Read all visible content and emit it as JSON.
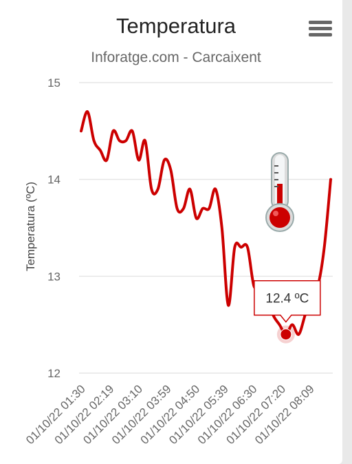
{
  "header": {
    "title": "Temperatura",
    "subtitle": "Inforatge.com - Carcaixent",
    "menu_icon": "hamburger-menu-icon"
  },
  "chart_data": {
    "type": "line",
    "title": "Temperatura",
    "subtitle": "Inforatge.com - Carcaixent",
    "xlabel": "",
    "ylabel": "Temperatura (ºC)",
    "ylim": [
      12,
      15
    ],
    "y_ticks": [
      12,
      13,
      14,
      15
    ],
    "x_tick_labels": [
      "01/10/22 01:30",
      "01/10/22 02:19",
      "01/10/22 03:10",
      "01/10/22 03:59",
      "01/10/22 04:50",
      "01/10/22 05:39",
      "01/10/22 06:30",
      "01/10/22 07:20",
      "01/10/22 08:09"
    ],
    "grid": true,
    "series": [
      {
        "color": "#cc0000",
        "values": [
          14.5,
          14.7,
          14.4,
          14.3,
          14.2,
          14.5,
          14.4,
          14.4,
          14.5,
          14.2,
          14.4,
          13.9,
          13.9,
          14.2,
          14.1,
          13.7,
          13.7,
          13.9,
          13.6,
          13.7,
          13.7,
          13.9,
          13.5,
          12.7,
          13.3,
          13.3,
          13.3,
          12.9,
          12.9,
          12.8,
          12.6,
          12.5,
          12.4,
          12.5,
          12.4,
          12.6,
          12.8,
          12.9,
          13.3,
          14.0
        ]
      }
    ],
    "tooltip": {
      "text": "12.4 ºC",
      "point_index": 32,
      "value": 12.4
    },
    "annotation_icon": "thermometer-icon",
    "colors": {
      "line": "#cc0000",
      "grid": "#e6e6e6",
      "axis_text": "#666666"
    }
  }
}
